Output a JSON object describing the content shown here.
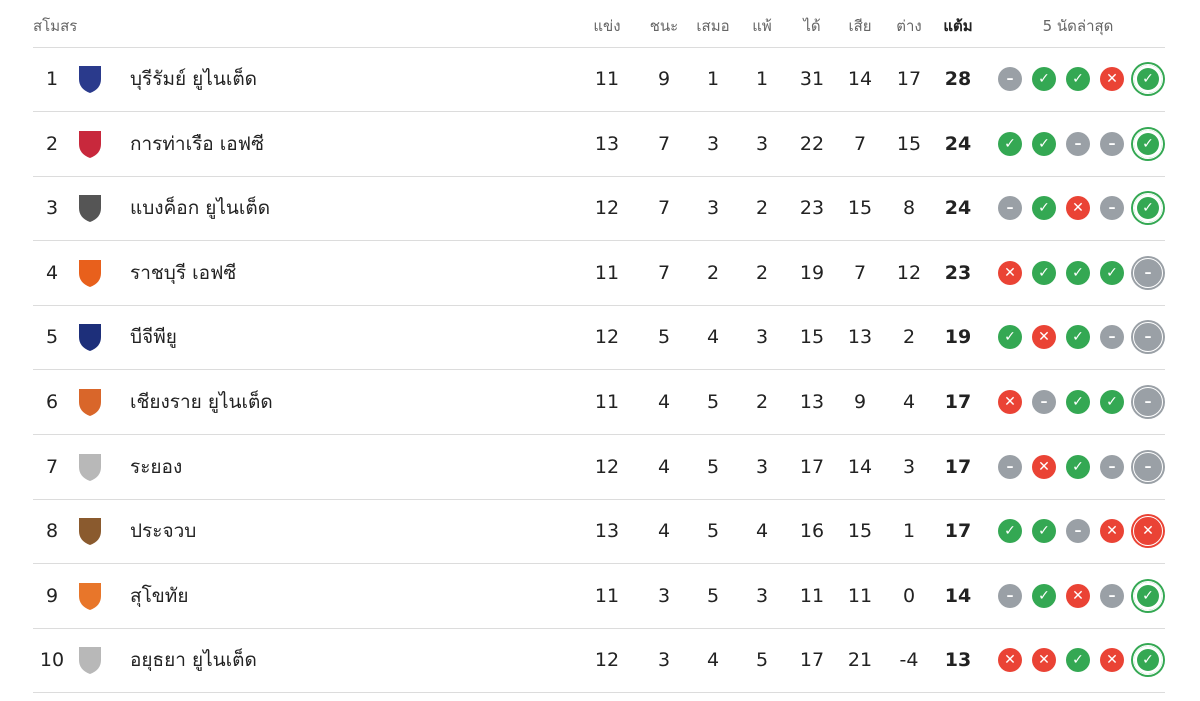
{
  "headers": {
    "club": "สโมสร",
    "played": "แข่ง",
    "won": "ชนะ",
    "drawn": "เสมอ",
    "lost": "แพ้",
    "gf": "ได้",
    "ga": "เสีย",
    "gd": "ต่าง",
    "pts": "แต้ม",
    "form": "5 นัดล่าสุด"
  },
  "form_colors": {
    "W": "#34a853",
    "L": "#ea4335",
    "D": "#9aa0a6"
  },
  "rows": [
    {
      "pos": "1",
      "name": "บุรีรัมย์ ยูไนเต็ด",
      "p": "11",
      "w": "9",
      "d": "1",
      "l": "1",
      "gf": "31",
      "ga": "14",
      "gd": "17",
      "pts": "28",
      "form": [
        "D",
        "W",
        "W",
        "L",
        "W"
      ],
      "logo_color": "#2a3a8c"
    },
    {
      "pos": "2",
      "name": "การท่าเรือ เอฟซี",
      "p": "13",
      "w": "7",
      "d": "3",
      "l": "3",
      "gf": "22",
      "ga": "7",
      "gd": "15",
      "pts": "24",
      "form": [
        "W",
        "W",
        "D",
        "D",
        "W"
      ],
      "logo_color": "#c8283c"
    },
    {
      "pos": "3",
      "name": "แบงค็อก ยูไนเต็ด",
      "p": "12",
      "w": "7",
      "d": "3",
      "l": "2",
      "gf": "23",
      "ga": "15",
      "gd": "8",
      "pts": "24",
      "form": [
        "D",
        "W",
        "L",
        "D",
        "W"
      ],
      "logo_color": "#555555"
    },
    {
      "pos": "4",
      "name": "ราชบุรี เอฟซี",
      "p": "11",
      "w": "7",
      "d": "2",
      "l": "2",
      "gf": "19",
      "ga": "7",
      "gd": "12",
      "pts": "23",
      "form": [
        "L",
        "W",
        "W",
        "W",
        "D"
      ],
      "logo_color": "#e8601c"
    },
    {
      "pos": "5",
      "name": "บีจีพียู",
      "p": "12",
      "w": "5",
      "d": "4",
      "l": "3",
      "gf": "15",
      "ga": "13",
      "gd": "2",
      "pts": "19",
      "form": [
        "W",
        "L",
        "W",
        "D",
        "D"
      ],
      "logo_color": "#1d2f7a"
    },
    {
      "pos": "6",
      "name": "เชียงราย ยูไนเต็ด",
      "p": "11",
      "w": "4",
      "d": "5",
      "l": "2",
      "gf": "13",
      "ga": "9",
      "gd": "4",
      "pts": "17",
      "form": [
        "L",
        "D",
        "W",
        "W",
        "D"
      ],
      "logo_color": "#d9662a"
    },
    {
      "pos": "7",
      "name": "ระยอง",
      "p": "12",
      "w": "4",
      "d": "5",
      "l": "3",
      "gf": "17",
      "ga": "14",
      "gd": "3",
      "pts": "17",
      "form": [
        "D",
        "L",
        "W",
        "D",
        "D"
      ],
      "logo_color": "#b8b8b8"
    },
    {
      "pos": "8",
      "name": "ประจวบ",
      "p": "13",
      "w": "4",
      "d": "5",
      "l": "4",
      "gf": "16",
      "ga": "15",
      "gd": "1",
      "pts": "17",
      "form": [
        "W",
        "W",
        "D",
        "L",
        "L"
      ],
      "logo_color": "#8a5a2e"
    },
    {
      "pos": "9",
      "name": "สุโขทัย",
      "p": "11",
      "w": "3",
      "d": "5",
      "l": "3",
      "gf": "11",
      "ga": "11",
      "gd": "0",
      "pts": "14",
      "form": [
        "D",
        "W",
        "L",
        "D",
        "W"
      ],
      "logo_color": "#e8762a"
    },
    {
      "pos": "10",
      "name": "อยุธยา ยูไนเต็ด",
      "p": "12",
      "w": "3",
      "d": "4",
      "l": "5",
      "gf": "17",
      "ga": "21",
      "gd": "-4",
      "pts": "13",
      "form": [
        "L",
        "L",
        "W",
        "L",
        "W"
      ],
      "logo_color": "#b8b8b8"
    }
  ]
}
